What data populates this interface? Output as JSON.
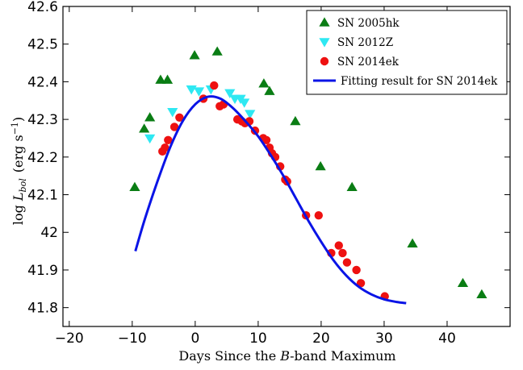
{
  "chart_data": {
    "type": "scatter",
    "xlabel_parts": [
      "Days Since the ",
      "B",
      "-band Maximum"
    ],
    "ylabel_parts": [
      "log ",
      "L",
      "bol",
      " (erg s",
      "−1",
      ")"
    ],
    "xlim": [
      -21,
      50
    ],
    "ylim": [
      41.75,
      42.6
    ],
    "xticks": [
      -20,
      -10,
      0,
      10,
      20,
      30,
      40
    ],
    "yticks": [
      41.8,
      41.9,
      42,
      42.1,
      42.2,
      42.3,
      42.4,
      42.5,
      42.6
    ],
    "ytick_labels": [
      "41.8",
      "41.9",
      "42",
      "42.1",
      "42.2",
      "42.3",
      "42.4",
      "42.5",
      "42.6"
    ],
    "legend_position": "top-right",
    "series": [
      {
        "name": "SN 2005hk",
        "marker": "triangle-up",
        "color": "#0a7d14",
        "x": [
          -9.6,
          -8.1,
          -7.2,
          -5.5,
          -4.4,
          -0.1,
          3.5,
          10.9,
          11.8,
          15.9,
          19.9,
          24.9,
          34.5,
          42.5,
          45.5
        ],
        "y": [
          42.12,
          42.275,
          42.305,
          42.405,
          42.405,
          42.47,
          42.48,
          42.395,
          42.375,
          42.295,
          42.175,
          42.12,
          41.97,
          41.865,
          41.835
        ]
      },
      {
        "name": "SN 2012Z",
        "marker": "triangle-down",
        "color": "#2ee8f2",
        "x": [
          -7.2,
          -3.6,
          -0.6,
          0.6,
          2.5,
          5.5,
          6.3,
          7.2,
          7.8,
          8.7
        ],
        "y": [
          42.25,
          42.32,
          42.38,
          42.375,
          42.38,
          42.37,
          42.355,
          42.355,
          42.345,
          42.315
        ]
      },
      {
        "name": "SN 2014ek",
        "marker": "circle",
        "color": "#ee1111",
        "x": [
          -5.2,
          -4.8,
          -4.3,
          -3.3,
          -2.5,
          1.3,
          3.0,
          3.9,
          4.5,
          6.7,
          7.4,
          7.9,
          8.6,
          9.5,
          10.8,
          11.3,
          11.8,
          12.2,
          12.7,
          13.5,
          14.3,
          14.6,
          17.6,
          19.6,
          21.6,
          22.8,
          23.4,
          24.1,
          25.6,
          26.3,
          30.1
        ],
        "y": [
          42.215,
          42.225,
          42.245,
          42.28,
          42.305,
          42.355,
          42.39,
          42.335,
          42.34,
          42.3,
          42.295,
          42.29,
          42.295,
          42.27,
          42.25,
          42.245,
          42.225,
          42.21,
          42.2,
          42.175,
          42.14,
          42.135,
          42.045,
          42.045,
          41.945,
          41.965,
          41.945,
          41.92,
          41.9,
          41.865,
          41.83
        ]
      }
    ],
    "fit": {
      "name": "Fitting result for SN 2014ek",
      "color": "#0a14e6",
      "x": [
        -9.5,
        -8,
        -6,
        -4,
        -2,
        0,
        2,
        4,
        6,
        8,
        10,
        12,
        14,
        16,
        18,
        20,
        22,
        24,
        26,
        28,
        30,
        32,
        33.5
      ],
      "y": [
        41.95,
        42.035,
        42.135,
        42.225,
        42.295,
        42.34,
        42.36,
        42.355,
        42.33,
        42.295,
        42.255,
        42.205,
        42.15,
        42.09,
        42.03,
        41.975,
        41.925,
        41.885,
        41.855,
        41.835,
        41.822,
        41.815,
        41.812
      ]
    }
  }
}
